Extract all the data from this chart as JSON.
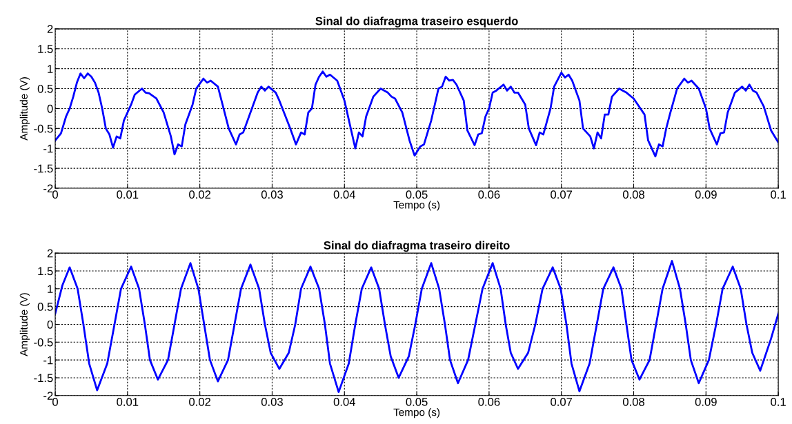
{
  "chart_data": [
    {
      "type": "line",
      "title": "Sinal do diafragma traseiro esquerdo",
      "xlabel": "Tempo (s)",
      "ylabel": "Amplitude (V)",
      "xlim": [
        0,
        0.1
      ],
      "ylim": [
        -2,
        2
      ],
      "xticks": [
        0,
        0.01,
        0.02,
        0.03,
        0.04,
        0.05,
        0.06,
        0.07,
        0.08,
        0.09,
        {
          "value": 0.1,
          "label": "0.1"
        }
      ],
      "yticks": [
        -2,
        -1.5,
        -1,
        -0.5,
        0,
        0.5,
        1,
        1.5,
        2
      ],
      "grid": true,
      "line_style": "solid",
      "marker": "none",
      "series": [
        {
          "color": "#0000ff",
          "x": [
            0,
            0.0008,
            0.0015,
            0.002,
            0.0025,
            0.003,
            0.0035,
            0.004,
            0.0045,
            0.005,
            0.0055,
            0.006,
            0.0065,
            0.007,
            0.0075,
            0.008,
            0.0085,
            0.009,
            0.0095,
            0.0105,
            0.011,
            0.012,
            0.0125,
            0.013,
            0.014,
            0.015,
            0.016,
            0.0165,
            0.017,
            0.0175,
            0.018,
            0.019,
            0.0195,
            0.0205,
            0.021,
            0.0215,
            0.0225,
            0.023,
            0.024,
            0.025,
            0.0255,
            0.026,
            0.027,
            0.028,
            0.0285,
            0.029,
            0.0295,
            0.0305,
            0.031,
            0.0325,
            0.0333,
            0.034,
            0.0345,
            0.035,
            0.0355,
            0.036,
            0.0365,
            0.037,
            0.0375,
            0.038,
            0.039,
            0.04,
            0.041,
            0.0415,
            0.042,
            0.0425,
            0.043,
            0.044,
            0.045,
            0.046,
            0.0465,
            0.047,
            0.048,
            0.049,
            0.0497,
            0.0505,
            0.051,
            0.052,
            0.053,
            0.0535,
            0.054,
            0.0545,
            0.055,
            0.0555,
            0.0565,
            0.057,
            0.058,
            0.0585,
            0.059,
            0.0595,
            0.06,
            0.0605,
            0.061,
            0.062,
            0.0625,
            0.063,
            0.0635,
            0.064,
            0.065,
            0.0655,
            0.0665,
            0.067,
            0.0675,
            0.0685,
            0.069,
            0.07,
            0.0705,
            0.071,
            0.0715,
            0.0725,
            0.073,
            0.074,
            0.0745,
            0.075,
            0.0755,
            0.076,
            0.0765,
            0.077,
            0.078,
            0.0785,
            0.079,
            0.08,
            0.0815,
            0.082,
            0.083,
            0.0835,
            0.084,
            0.0845,
            0.085,
            0.086,
            0.087,
            0.0875,
            0.088,
            0.089,
            0.09,
            0.0905,
            0.0915,
            0.092,
            0.0925,
            0.093,
            0.094,
            0.095,
            0.0955,
            0.096,
            0.0965,
            0.097,
            0.098,
            0.099,
            0.1
          ],
          "values": [
            -0.8,
            -0.62,
            -0.2,
            0.0,
            0.3,
            0.65,
            0.88,
            0.76,
            0.88,
            0.8,
            0.65,
            0.4,
            0.0,
            -0.5,
            -0.65,
            -0.98,
            -0.7,
            -0.75,
            -0.3,
            0.1,
            0.35,
            0.5,
            0.4,
            0.38,
            0.25,
            -0.1,
            -0.7,
            -1.15,
            -0.9,
            -0.95,
            -0.4,
            0.1,
            0.5,
            0.75,
            0.65,
            0.7,
            0.55,
            0.2,
            -0.5,
            -0.9,
            -0.65,
            -0.6,
            -0.1,
            0.4,
            0.55,
            0.45,
            0.55,
            0.4,
            0.2,
            -0.5,
            -0.9,
            -0.6,
            -0.65,
            -0.1,
            0.0,
            0.6,
            0.8,
            0.93,
            0.8,
            0.85,
            0.7,
            0.2,
            -0.6,
            -1.0,
            -0.6,
            -0.7,
            -0.2,
            0.3,
            0.5,
            0.4,
            0.3,
            0.25,
            -0.1,
            -0.8,
            -1.18,
            -0.95,
            -0.9,
            -0.3,
            0.5,
            0.55,
            0.8,
            0.7,
            0.72,
            0.6,
            0.2,
            -0.55,
            -0.92,
            -0.65,
            -0.62,
            -0.2,
            0.0,
            0.4,
            0.45,
            0.6,
            0.45,
            0.55,
            0.4,
            0.4,
            0.1,
            -0.5,
            -0.92,
            -0.6,
            -0.65,
            0.0,
            0.55,
            0.9,
            0.78,
            0.85,
            0.7,
            0.2,
            -0.5,
            -0.7,
            -1.0,
            -0.6,
            -0.75,
            -0.15,
            -0.15,
            0.3,
            0.5,
            0.45,
            0.4,
            0.25,
            -0.15,
            -0.8,
            -1.2,
            -0.9,
            -0.95,
            -0.5,
            -0.15,
            0.5,
            0.75,
            0.65,
            0.7,
            0.5,
            0.0,
            -0.5,
            -0.9,
            -0.62,
            -0.6,
            -0.1,
            0.4,
            0.55,
            0.45,
            0.6,
            0.45,
            0.4,
            0.05,
            -0.55,
            -0.85
          ]
        }
      ]
    },
    {
      "type": "line",
      "title": "Sinal do diafragma traseiro direito",
      "xlabel": "Tempo (s)",
      "ylabel": "Amplitude (V)",
      "xlim": [
        0,
        0.1
      ],
      "ylim": [
        -2,
        2
      ],
      "xticks": [
        0,
        0.01,
        0.02,
        0.03,
        0.04,
        0.05,
        0.06,
        0.07,
        0.08,
        0.09,
        {
          "value": 0.1,
          "label": "0.1"
        }
      ],
      "yticks": [
        -2,
        -1.5,
        -1,
        -0.5,
        0,
        0.5,
        1,
        1.5,
        2
      ],
      "grid": true,
      "line_style": "solid",
      "marker": "none",
      "series": [
        {
          "color": "#0000ff",
          "x": [
            0,
            0.001,
            0.002,
            0.0031,
            0.0039,
            0.0047,
            0.0058,
            0.0072,
            0.0082,
            0.0091,
            0.0105,
            0.0116,
            0.0124,
            0.0131,
            0.0142,
            0.0156,
            0.0165,
            0.0174,
            0.0187,
            0.0198,
            0.0206,
            0.0214,
            0.0225,
            0.0239,
            0.0248,
            0.0257,
            0.027,
            0.0282,
            0.029,
            0.0298,
            0.031,
            0.0323,
            0.0332,
            0.034,
            0.0353,
            0.0365,
            0.0373,
            0.038,
            0.0392,
            0.0406,
            0.0415,
            0.0424,
            0.0437,
            0.0448,
            0.0456,
            0.0464,
            0.0475,
            0.0489,
            0.0498,
            0.0507,
            0.052,
            0.0531,
            0.0539,
            0.0546,
            0.0557,
            0.0571,
            0.0581,
            0.0591,
            0.0605,
            0.0616,
            0.0623,
            0.063,
            0.064,
            0.0654,
            0.0664,
            0.0674,
            0.0688,
            0.0699,
            0.0707,
            0.0714,
            0.0725,
            0.0739,
            0.0749,
            0.0758,
            0.0772,
            0.0783,
            0.079,
            0.0797,
            0.0808,
            0.0822,
            0.0831,
            0.084,
            0.0853,
            0.0864,
            0.0872,
            0.0879,
            0.089,
            0.0904,
            0.0914,
            0.0923,
            0.0937,
            0.0948,
            0.0956,
            0.0964,
            0.0975,
            0.099,
            0.1
          ],
          "values": [
            0.3,
            1.1,
            1.6,
            1.0,
            0.0,
            -1.1,
            -1.85,
            -1.1,
            0.0,
            1.0,
            1.62,
            1.0,
            0.0,
            -1.0,
            -1.55,
            -1.0,
            0.0,
            1.0,
            1.72,
            1.0,
            0.0,
            -1.0,
            -1.6,
            -1.0,
            0.0,
            1.0,
            1.68,
            1.0,
            0.0,
            -0.8,
            -1.25,
            -0.8,
            0.0,
            1.0,
            1.62,
            1.0,
            0.0,
            -1.1,
            -1.9,
            -1.1,
            0.0,
            1.0,
            1.6,
            1.0,
            0.0,
            -0.9,
            -1.5,
            -0.9,
            0.0,
            1.0,
            1.72,
            1.0,
            0.0,
            -1.0,
            -1.65,
            -1.0,
            0.0,
            1.0,
            1.72,
            1.0,
            0.0,
            -0.8,
            -1.25,
            -0.8,
            0.0,
            1.0,
            1.6,
            1.0,
            0.0,
            -1.1,
            -1.88,
            -1.1,
            0.0,
            1.0,
            1.6,
            1.0,
            0.0,
            -1.0,
            -1.55,
            -1.0,
            0.0,
            1.0,
            1.78,
            1.0,
            0.0,
            -1.0,
            -1.65,
            -1.0,
            0.0,
            1.0,
            1.62,
            1.0,
            0.0,
            -0.8,
            -1.3,
            -0.4,
            0.3
          ]
        }
      ]
    }
  ]
}
